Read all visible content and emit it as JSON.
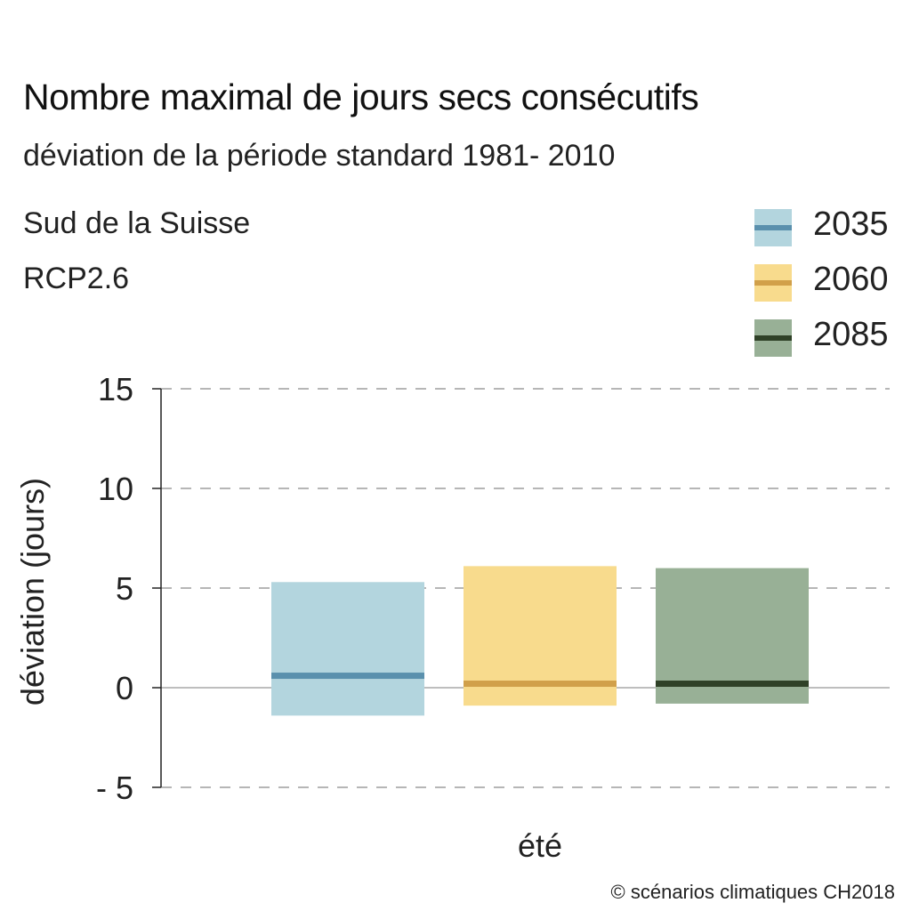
{
  "chart_data": {
    "type": "bar",
    "title": "Nombre maximal de jours secs consécutifs",
    "subtitle": "déviation de la période standard 1981- 2010",
    "region": "Sud de la Suisse",
    "scenario": "RCP2.6",
    "ylabel": "déviation (jours)",
    "xlabel": "",
    "categories": [
      "été"
    ],
    "ylim": [
      -5,
      15
    ],
    "yticks": [
      15,
      10,
      5,
      0,
      -5
    ],
    "ytick_labels": [
      "15",
      "10",
      "5",
      "0",
      "- 5"
    ],
    "grid": "dashed horizontal",
    "legend_position": "top-right",
    "series": [
      {
        "name": "2035",
        "low": -1.4,
        "high": 5.3,
        "median": 0.6,
        "fill": "#b3d5de",
        "line": "#5a90ad"
      },
      {
        "name": "2060",
        "low": -0.9,
        "high": 6.1,
        "median": 0.2,
        "fill": "#f8db8d",
        "line": "#d1a04a"
      },
      {
        "name": "2085",
        "low": -0.8,
        "high": 6.0,
        "median": 0.2,
        "fill": "#98b096",
        "line": "#2f4127"
      }
    ]
  },
  "copyright": "© scénarios climatiques CH2018"
}
